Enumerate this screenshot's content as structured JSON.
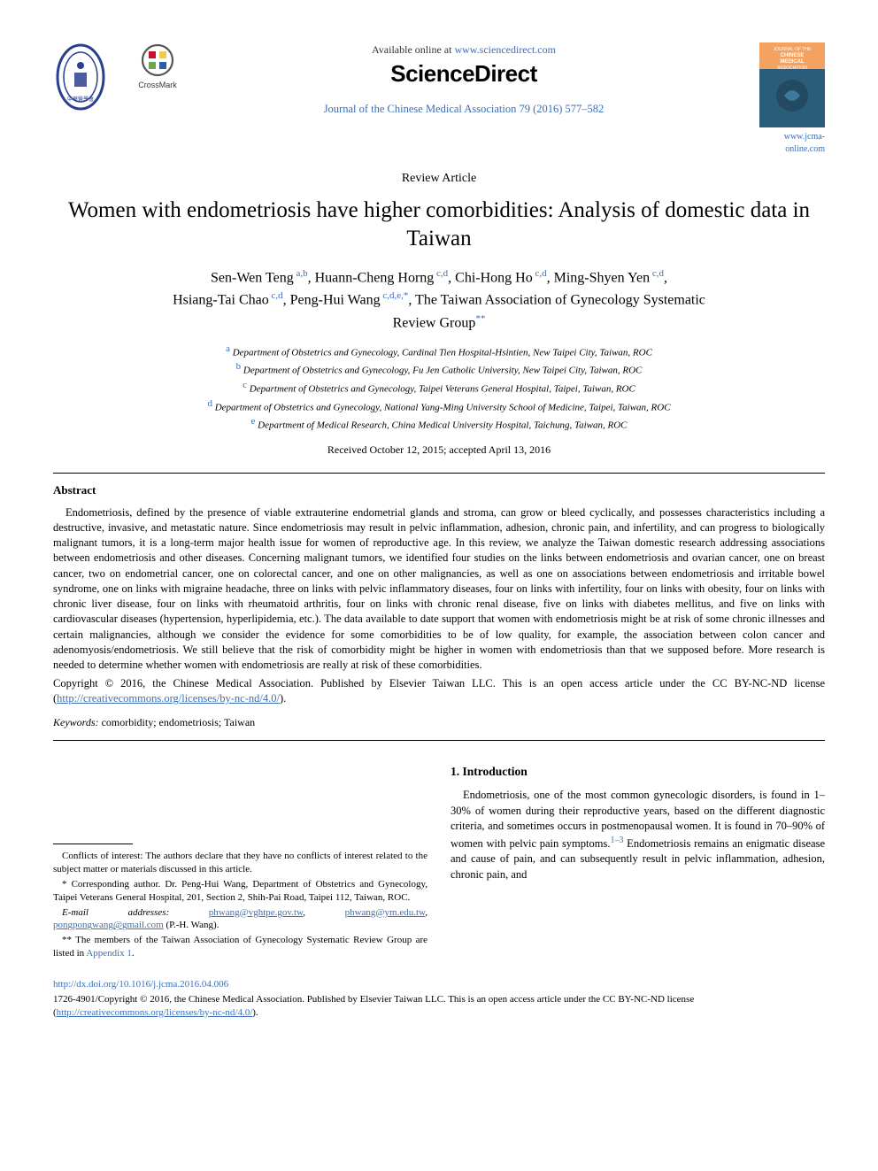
{
  "header": {
    "available_prefix": "Available online at ",
    "available_url": "www.sciencedirect.com",
    "sd_logo": "ScienceDirect",
    "journal_ref": "Journal of the Chinese Medical Association 79 (2016) 577–582",
    "jcma_url": "www.jcma-online.com",
    "crossmark_label": "CrossMark",
    "society_logo_color": "#2a3f8f",
    "crossmark_red": "#c8102e",
    "crossmark_yellow": "#f2c94c",
    "crossmark_blue": "#2d5fa4",
    "crossmark_green": "#6aa84f",
    "cover_bg_top": "#f4a261",
    "cover_bg_bot": "#2a5d7a",
    "cover_title1": "JOURNAL OF THE",
    "cover_title2": "CHINESE",
    "cover_title3": "MEDICAL",
    "cover_title4": "ASSOCIATION"
  },
  "article": {
    "type": "Review Article",
    "title": "Women with endometriosis have higher comorbidities: Analysis of domestic data in Taiwan",
    "authors_html": "Sen-Wen Teng <sup>a,b</sup>, Huann-Cheng Horng <sup>c,d</sup>, Chi-Hong Ho <sup>c,d</sup>, Ming-Shyen Yen <sup>c,d</sup>, Hsiang-Tai Chao <sup>c,d</sup>, Peng-Hui Wang <sup>c,d,e,*</sup>, The Taiwan Association of Gynecology Systematic Review Group<sup>**</sup>",
    "affiliations": [
      {
        "key": "a",
        "text": "Department of Obstetrics and Gynecology, Cardinal Tien Hospital-Hsintien, New Taipei City, Taiwan, ROC"
      },
      {
        "key": "b",
        "text": "Department of Obstetrics and Gynecology, Fu Jen Catholic University, New Taipei City, Taiwan, ROC"
      },
      {
        "key": "c",
        "text": "Department of Obstetrics and Gynecology, Taipei Veterans General Hospital, Taipei, Taiwan, ROC"
      },
      {
        "key": "d",
        "text": "Department of Obstetrics and Gynecology, National Yang-Ming University School of Medicine, Taipei, Taiwan, ROC"
      },
      {
        "key": "e",
        "text": "Department of Medical Research, China Medical University Hospital, Taichung, Taiwan, ROC"
      }
    ],
    "dates": "Received October 12, 2015; accepted April 13, 2016"
  },
  "abstract": {
    "heading": "Abstract",
    "body": "Endometriosis, defined by the presence of viable extrauterine endometrial glands and stroma, can grow or bleed cyclically, and possesses characteristics including a destructive, invasive, and metastatic nature. Since endometriosis may result in pelvic inflammation, adhesion, chronic pain, and infertility, and can progress to biologically malignant tumors, it is a long-term major health issue for women of reproductive age. In this review, we analyze the Taiwan domestic research addressing associations between endometriosis and other diseases. Concerning malignant tumors, we identified four studies on the links between endometriosis and ovarian cancer, one on breast cancer, two on endometrial cancer, one on colorectal cancer, and one on other malignancies, as well as one on associations between endometriosis and irritable bowel syndrome, one on links with migraine headache, three on links with pelvic inflammatory diseases, four on links with infertility, four on links with obesity, four on links with chronic liver disease, four on links with rheumatoid arthritis, four on links with chronic renal disease, five on links with diabetes mellitus, and five on links with cardiovascular diseases (hypertension, hyperlipidemia, etc.). The data available to date support that women with endometriosis might be at risk of some chronic illnesses and certain malignancies, although we consider the evidence for some comorbidities to be of low quality, for example, the association between colon cancer and adenomyosis/endometriosis. We still believe that the risk of comorbidity might be higher in women with endometriosis than that we supposed before. More research is needed to determine whether women with endometriosis are really at risk of these comorbidities.",
    "copyright_prefix": "Copyright © 2016, the Chinese Medical Association. Published by Elsevier Taiwan LLC. This is an open access article under the CC BY-NC-ND license (",
    "copyright_url": "http://creativecommons.org/licenses/by-nc-nd/4.0/",
    "copyright_suffix": ")."
  },
  "keywords": {
    "label": "Keywords:",
    "text": " comorbidity; endometriosis; Taiwan"
  },
  "footnotes": {
    "coi": "Conflicts of interest: The authors declare that they have no conflicts of interest related to the subject matter or materials discussed in this article.",
    "corr": "* Corresponding author. Dr. Peng-Hui Wang, Department of Obstetrics and Gynecology, Taipei Veterans General Hospital, 201, Section 2, Shih-Pai Road, Taipei 112, Taiwan, ROC.",
    "email_label": "E-mail addresses:",
    "emails": [
      "phwang@vghtpe.gov.tw",
      "phwang@ym.edu.tw",
      "pongpongwang@gmail.com"
    ],
    "email_author": " (P.-H. Wang).",
    "group_note_pre": "** The members of the Taiwan Association of Gynecology Systematic Review Group are listed in ",
    "group_note_link": "Appendix 1",
    "group_note_post": "."
  },
  "intro": {
    "heading": "1. Introduction",
    "body_pre": "Endometriosis, one of the most common gynecologic disorders, is found in 1–30% of women during their reproductive years, based on the different diagnostic criteria, and sometimes occurs in postmenopausal women. It is found in 70–90% of women with pelvic pain symptoms.",
    "cite": "1–3",
    "body_post": " Endometriosis remains an enigmatic disease and cause of pain, and can subsequently result in pelvic inflammation, adhesion, chronic pain, and"
  },
  "footer": {
    "doi": "http://dx.doi.org/10.1016/j.jcma.2016.04.006",
    "issn_line_pre": "1726-4901/Copyright © 2016, the Chinese Medical Association. Published by Elsevier Taiwan LLC. This is an open access article under the CC BY-NC-ND license (",
    "issn_url": "http://creativecommons.org/licenses/by-nc-nd/4.0/",
    "issn_line_post": ")."
  },
  "colors": {
    "link": "#3b6fb6",
    "text": "#000000"
  }
}
